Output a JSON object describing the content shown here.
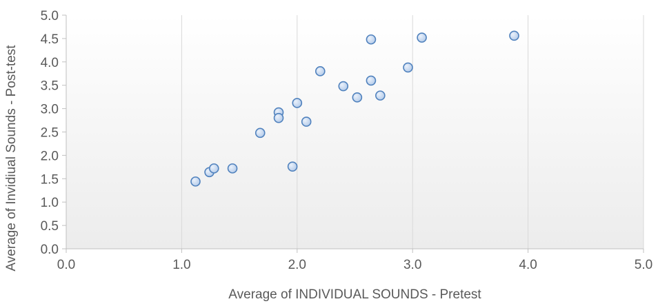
{
  "chart_data": {
    "type": "scatter",
    "title": "",
    "xlabel": "Average of INDIVIDUAL SOUNDS - Pretest",
    "ylabel": "Average of Invidiual Sounds - Post-test",
    "xlim": [
      0,
      5
    ],
    "ylim": [
      0,
      5
    ],
    "x_ticks": [
      "0.0",
      "1.0",
      "2.0",
      "3.0",
      "4.0",
      "5.0"
    ],
    "y_ticks": [
      "0.0",
      "0.5",
      "1.0",
      "1.5",
      "2.0",
      "2.5",
      "3.0",
      "3.5",
      "4.0",
      "4.5",
      "5.0"
    ],
    "grid": "vertical major gridlines",
    "legend": "none",
    "colors": {
      "marker_fill": "#c6d9f1",
      "marker_stroke": "#4f81bd",
      "plot_background_top": "#ffffff",
      "plot_background_bottom": "#ececec",
      "gridline": "#d9d9d9",
      "axis_text": "#595959"
    },
    "points": [
      {
        "x": 1.12,
        "y": 1.44
      },
      {
        "x": 1.24,
        "y": 1.64
      },
      {
        "x": 1.28,
        "y": 1.72
      },
      {
        "x": 1.44,
        "y": 1.72
      },
      {
        "x": 1.68,
        "y": 2.48
      },
      {
        "x": 1.84,
        "y": 2.92
      },
      {
        "x": 1.84,
        "y": 2.8
      },
      {
        "x": 1.96,
        "y": 1.76
      },
      {
        "x": 2.0,
        "y": 3.12
      },
      {
        "x": 2.08,
        "y": 2.72
      },
      {
        "x": 2.2,
        "y": 3.8
      },
      {
        "x": 2.4,
        "y": 3.48
      },
      {
        "x": 2.52,
        "y": 3.24
      },
      {
        "x": 2.64,
        "y": 4.48
      },
      {
        "x": 2.64,
        "y": 3.6
      },
      {
        "x": 2.72,
        "y": 3.28
      },
      {
        "x": 2.96,
        "y": 3.88
      },
      {
        "x": 3.08,
        "y": 4.52
      },
      {
        "x": 3.88,
        "y": 4.56
      }
    ]
  }
}
